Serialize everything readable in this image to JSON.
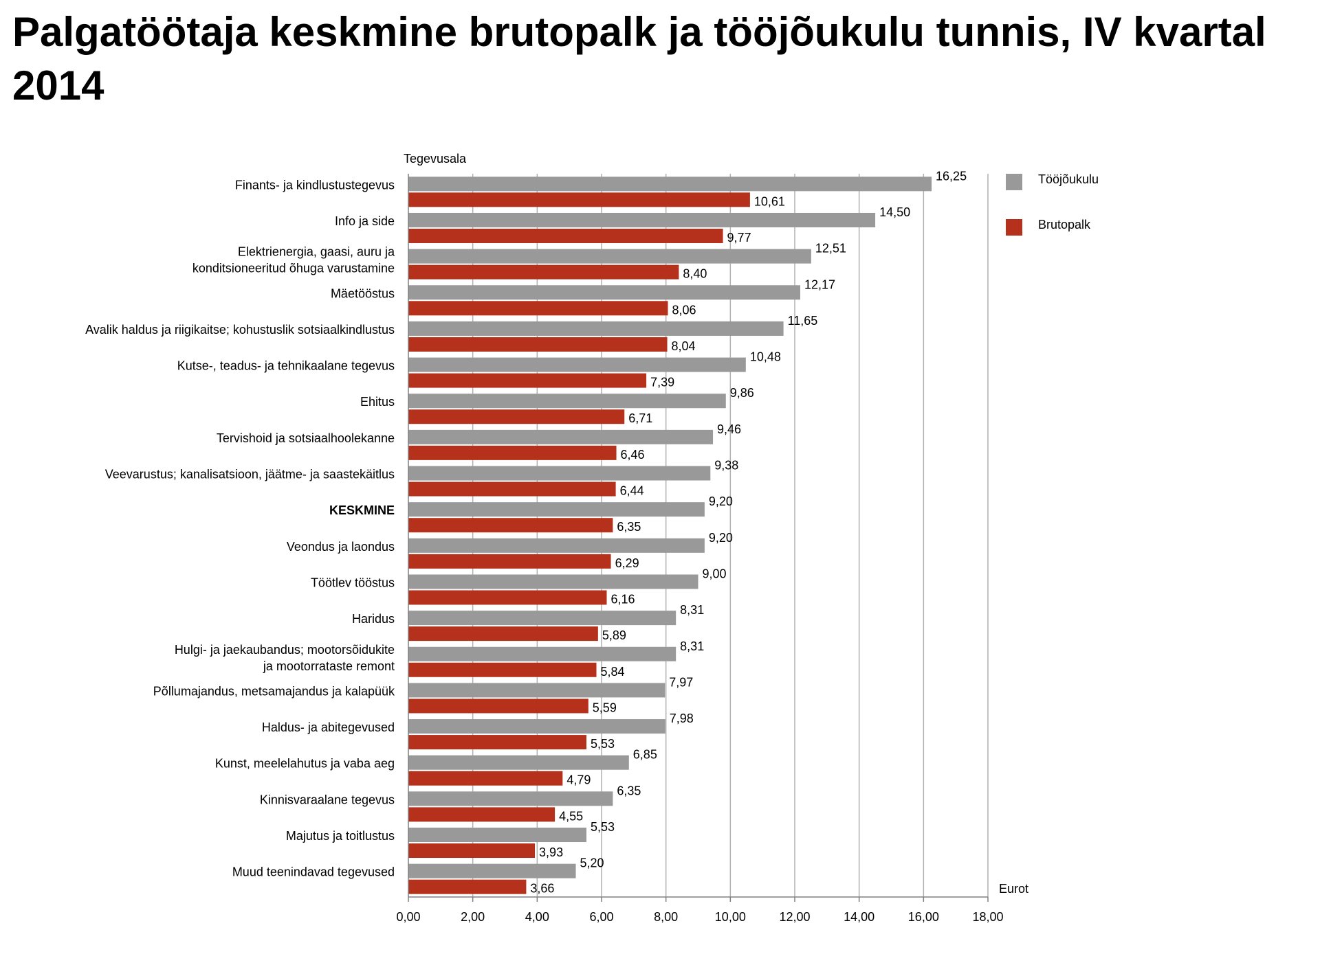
{
  "title": "Palgatöötaja keskmine brutopalk ja tööjõukulu tunnis, IV kvartal 2014",
  "chart_data": {
    "type": "bar",
    "orientation": "horizontal",
    "title": "Palgatöötaja keskmine brutopalk ja tööjõukulu tunnis, IV kvartal 2014",
    "ylabel": "Tegevusala",
    "xlabel": "Eurot",
    "xlim": [
      0,
      18
    ],
    "xticks": [
      "0,00",
      "2,00",
      "4,00",
      "6,00",
      "8,00",
      "10,00",
      "12,00",
      "14,00",
      "16,00",
      "18,00"
    ],
    "grid": "vertical",
    "legend_position": "right",
    "categories": [
      [
        "Finants- ja kindlustustegevus"
      ],
      [
        "Info ja side"
      ],
      [
        "Elektrienergia, gaasi, auru ja",
        "konditsioneeritud õhuga varustamine"
      ],
      [
        "Mäetööstus"
      ],
      [
        "Avalik haldus ja riigikaitse; kohustuslik sotsiaalkindlustus"
      ],
      [
        "Kutse-, teadus- ja tehnikaalane tegevus"
      ],
      [
        "Ehitus"
      ],
      [
        "Tervishoid ja sotsiaalhoolekanne"
      ],
      [
        "Veevarustus; kanalisatsioon, jäätme- ja saastekäitlus"
      ],
      [
        "KESKMINE"
      ],
      [
        "Veondus ja laondus"
      ],
      [
        "Töötlev tööstus"
      ],
      [
        "Haridus"
      ],
      [
        "Hulgi- ja jaekaubandus; mootorsõidukite",
        "ja mootorrataste remont"
      ],
      [
        "Põllumajandus, metsamajandus ja kalapüük"
      ],
      [
        "Haldus- ja abitegevused"
      ],
      [
        "Kunst, meelelahutus ja vaba aeg"
      ],
      [
        "Kinnisvaraalane tegevus"
      ],
      [
        "Majutus ja toitlustus"
      ],
      [
        "Muud teenindavad tegevused"
      ]
    ],
    "bold_category_index": 9,
    "series": [
      {
        "name": "Tööjõukulu",
        "color": "#999999",
        "values": [
          16.25,
          14.5,
          12.51,
          12.17,
          11.65,
          10.48,
          9.86,
          9.46,
          9.38,
          9.2,
          9.2,
          9.0,
          8.31,
          8.31,
          7.97,
          7.98,
          6.85,
          6.35,
          5.53,
          5.2
        ],
        "labels": [
          "16,25",
          "14,50",
          "12,51",
          "12,17",
          "11,65",
          "10,48",
          "9,86",
          "9,46",
          "9,38",
          "9,20",
          "9,20",
          "9,00",
          "8,31",
          "8,31",
          "7,97",
          "7,98",
          "6,85",
          "6,35",
          "5,53",
          "5,20"
        ]
      },
      {
        "name": "Brutopalk",
        "color": "#b5311c",
        "values": [
          10.61,
          9.77,
          8.4,
          8.06,
          8.04,
          7.39,
          6.71,
          6.46,
          6.44,
          6.35,
          6.29,
          6.16,
          5.89,
          5.84,
          5.59,
          5.53,
          4.79,
          4.55,
          3.93,
          3.66
        ],
        "labels": [
          "10,61",
          "9,77",
          "8,40",
          "8,06",
          "8,04",
          "7,39",
          "6,71",
          "6,46",
          "6,44",
          "6,35",
          "6,29",
          "6,16",
          "5,89",
          "5,84",
          "5,59",
          "5,53",
          "4,79",
          "4,55",
          "3,93",
          "3,66"
        ]
      }
    ]
  }
}
